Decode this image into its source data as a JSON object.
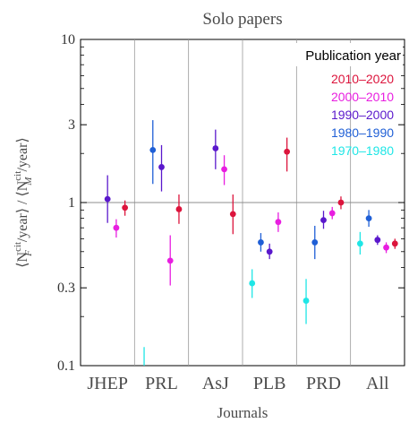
{
  "chart_data": {
    "type": "scatter",
    "title": "Solo papers",
    "xlabel": "Journals",
    "ylabel": "⟨N_F^cit/year⟩ / ⟨N_M^cit/year⟩",
    "ylabel_parts": {
      "open": "⟨N",
      "sub1": "F",
      "sup1": "cit",
      "mid": "/year⟩ / ⟨N",
      "sub2": "M",
      "sup2": "cit",
      "close": "/year⟩"
    },
    "yscale": "log",
    "ylim": [
      0.1,
      10
    ],
    "yticks": [
      {
        "value": 0.1,
        "label": "0.1"
      },
      {
        "value": 0.3,
        "label": "0.3"
      },
      {
        "value": 1,
        "label": "1"
      },
      {
        "value": 3,
        "label": "3"
      },
      {
        "value": 10,
        "label": "10"
      }
    ],
    "reference_line": 1,
    "categories": [
      "JHEP",
      "PRL",
      "AsJ",
      "PLB",
      "PRD",
      "All"
    ],
    "legend": {
      "title": "Publication year",
      "placement": "top-right",
      "entries": [
        "2010–2020",
        "2000–2010",
        "1990–2000",
        "1980–1990",
        "1970–1980"
      ]
    },
    "series": [
      {
        "name": "2010–2020",
        "color": "#dc143c",
        "points": [
          {
            "category": "JHEP",
            "value": 0.93,
            "low": 0.83,
            "high": 1.03
          },
          {
            "category": "PRL",
            "value": 0.91,
            "low": 0.74,
            "high": 1.12
          },
          {
            "category": "AsJ",
            "value": 0.85,
            "low": 0.64,
            "high": 1.12
          },
          {
            "category": "PLB",
            "value": 2.05,
            "low": 1.55,
            "high": 2.5
          },
          {
            "category": "PRD",
            "value": 1.0,
            "low": 0.91,
            "high": 1.09
          },
          {
            "category": "All",
            "value": 0.56,
            "low": 0.52,
            "high": 0.6
          }
        ]
      },
      {
        "name": "2000–2010",
        "color": "#e81ee0",
        "points": [
          {
            "category": "JHEP",
            "value": 0.7,
            "low": 0.61,
            "high": 0.79
          },
          {
            "category": "PRL",
            "value": 0.44,
            "low": 0.31,
            "high": 0.63
          },
          {
            "category": "AsJ",
            "value": 1.6,
            "low": 1.28,
            "high": 1.95
          },
          {
            "category": "PLB",
            "value": 0.76,
            "low": 0.66,
            "high": 0.87
          },
          {
            "category": "PRD",
            "value": 0.86,
            "low": 0.79,
            "high": 0.94
          },
          {
            "category": "All",
            "value": 0.53,
            "low": 0.49,
            "high": 0.57
          }
        ]
      },
      {
        "name": "1990–2000",
        "color": "#5a18cc",
        "points": [
          {
            "category": "JHEP",
            "value": 1.05,
            "low": 0.75,
            "high": 1.47
          },
          {
            "category": "PRL",
            "value": 1.65,
            "low": 1.17,
            "high": 2.25
          },
          {
            "category": "AsJ",
            "value": 2.15,
            "low": 1.6,
            "high": 2.8
          },
          {
            "category": "PLB",
            "value": 0.5,
            "low": 0.45,
            "high": 0.56
          },
          {
            "category": "PRD",
            "value": 0.78,
            "low": 0.69,
            "high": 0.89
          },
          {
            "category": "All",
            "value": 0.59,
            "low": 0.55,
            "high": 0.63
          }
        ]
      },
      {
        "name": "1980–1990",
        "color": "#1f5fd6",
        "points": [
          {
            "category": "PRL",
            "value": 2.1,
            "low": 1.3,
            "high": 3.2
          },
          {
            "category": "PLB",
            "value": 0.57,
            "low": 0.5,
            "high": 0.65
          },
          {
            "category": "PRD",
            "value": 0.57,
            "low": 0.45,
            "high": 0.72
          },
          {
            "category": "All",
            "value": 0.8,
            "low": 0.71,
            "high": 0.9
          }
        ]
      },
      {
        "name": "1970–1980",
        "color": "#1fe6e6",
        "points": [
          {
            "category": "PRL",
            "value": 0.095,
            "low": 0.08,
            "high": 0.13
          },
          {
            "category": "PLB",
            "value": 0.32,
            "low": 0.26,
            "high": 0.39
          },
          {
            "category": "PRD",
            "value": 0.25,
            "low": 0.18,
            "high": 0.34
          },
          {
            "category": "All",
            "value": 0.56,
            "low": 0.48,
            "high": 0.66
          }
        ]
      }
    ]
  }
}
